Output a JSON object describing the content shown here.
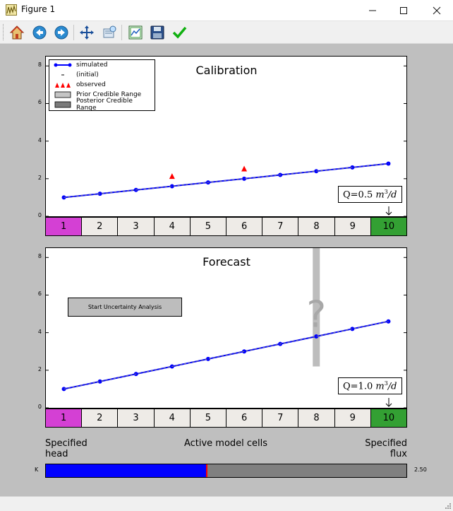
{
  "window": {
    "title": "Figure 1",
    "minimize": "—",
    "maximize": "☐",
    "close": "✕"
  },
  "toolbar": {
    "buttons": [
      "home-icon",
      "back-icon",
      "forward-icon",
      "pan-icon",
      "zoom-icon",
      "subplots-icon",
      "save-icon",
      "check-icon"
    ]
  },
  "colors": {
    "simulated": "#0000ff",
    "observed": "#ff0000",
    "head_cell": "#d440d4",
    "flux_cell": "#33a033",
    "cell": "#eeebe7",
    "slider_fill": "#0000ff",
    "slider_bg": "#808080",
    "question_bar": "#bdbdbd"
  },
  "calibration": {
    "title": "Calibration",
    "q_label": "Q=0.5",
    "q_unit_base": "m",
    "q_unit_exp": "3",
    "q_unit_den": "/d",
    "legend": {
      "simulated": "simulated",
      "initial": "(initial)",
      "observed": "observed",
      "prior": "Prior Credible Range",
      "posterior": "Posterior Credible Range"
    }
  },
  "forecast": {
    "title": "Forecast",
    "q_label": "Q=1.0",
    "q_unit_base": "m",
    "q_unit_exp": "3",
    "q_unit_den": "/d",
    "button_label": "Start Uncertainty Analysis",
    "question_mark": "?"
  },
  "cells": [
    "1",
    "2",
    "3",
    "4",
    "5",
    "6",
    "7",
    "8",
    "9",
    "10"
  ],
  "yticks": [
    "0",
    "2",
    "4",
    "6",
    "8"
  ],
  "bottom_labels": {
    "left_line1": "Specified",
    "left_line2": "head",
    "center": "Active model cells",
    "right_line1": "Specified",
    "right_line2": "flux"
  },
  "slider": {
    "left_label": "K",
    "right_label": "2.50",
    "fraction": 0.445
  },
  "chart_data": [
    {
      "type": "line",
      "title": "Calibration",
      "x": [
        1,
        2,
        3,
        4,
        5,
        6,
        7,
        8,
        9,
        10
      ],
      "ylim": [
        0,
        8.5
      ],
      "series": [
        {
          "name": "simulated",
          "values": [
            1.0,
            1.2,
            1.4,
            1.6,
            1.8,
            2.0,
            2.2,
            2.4,
            2.6,
            2.8
          ]
        },
        {
          "name": "(initial)",
          "values": [
            1.0,
            1.2,
            1.4,
            1.6,
            1.8,
            2.0,
            2.2,
            2.4,
            2.6,
            2.8
          ]
        }
      ],
      "observed": {
        "name": "observed",
        "x": [
          4,
          6
        ],
        "y": [
          2.1,
          2.5
        ]
      }
    },
    {
      "type": "line",
      "title": "Forecast",
      "x": [
        1,
        2,
        3,
        4,
        5,
        6,
        7,
        8,
        9,
        10
      ],
      "ylim": [
        0,
        8.5
      ],
      "series": [
        {
          "name": "simulated",
          "values": [
            1.0,
            1.4,
            1.8,
            2.2,
            2.6,
            3.0,
            3.4,
            3.8,
            4.2,
            4.6
          ]
        },
        {
          "name": "(initial)",
          "values": [
            1.0,
            1.4,
            1.8,
            2.2,
            2.6,
            3.0,
            3.4,
            3.8,
            4.2,
            4.6
          ]
        }
      ],
      "question_bar": {
        "x": 8,
        "y_from": 2.2,
        "y_to": 8.5
      }
    }
  ]
}
